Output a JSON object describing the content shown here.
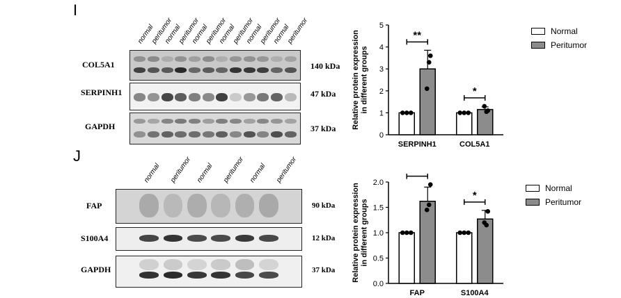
{
  "panel_i": {
    "letter": "I",
    "lane_labels": [
      "normal",
      "peritumor",
      "normal",
      "peritumor",
      "normal",
      "peritumor",
      "normal",
      "peritumor",
      "normal",
      "peritumor",
      "normal",
      "peritumor"
    ],
    "blots": [
      {
        "protein": "COL5A1",
        "size": "140 kDa"
      },
      {
        "protein": "SERPINH1",
        "size": "47 kDa"
      },
      {
        "protein": "GAPDH",
        "size": "37 kDa"
      }
    ],
    "legend": [
      {
        "label": "Normal",
        "color": "#ffffff"
      },
      {
        "label": "Peritumor",
        "color": "#8c8c8c"
      }
    ]
  },
  "panel_j": {
    "letter": "J",
    "lane_labels": [
      "normal",
      "peritumor",
      "normal",
      "peritumor",
      "normal",
      "peritumor"
    ],
    "blots": [
      {
        "protein": "FAP",
        "size": "90 kDa"
      },
      {
        "protein": "S100A4",
        "size": "12 kDa"
      },
      {
        "protein": "GAPDH",
        "size": "37 kDa"
      }
    ],
    "legend": [
      {
        "label": "Normal",
        "color": "#ffffff"
      },
      {
        "label": "Peritumor",
        "color": "#8c8c8c"
      }
    ]
  },
  "chart_data": [
    {
      "type": "bar",
      "ylabel": "Relative protein expression in different groups",
      "ylabel_lines": [
        "Relative protein expression",
        "in different groups"
      ],
      "categories": [
        "SERPINH1",
        "COL5A1"
      ],
      "ylim": [
        0,
        5
      ],
      "yticks": [
        0,
        1,
        2,
        3,
        4,
        5
      ],
      "series": [
        {
          "name": "Normal",
          "values": [
            1.0,
            1.0
          ],
          "errors": [
            0.0,
            0.0
          ],
          "points": [
            [
              1.0,
              1.0,
              1.0
            ],
            [
              1.0,
              1.0,
              1.0
            ]
          ]
        },
        {
          "name": "Peritumor",
          "values": [
            3.0,
            1.15
          ],
          "errors": [
            0.85,
            0.12
          ],
          "points": [
            [
              3.6,
              2.1,
              3.3
            ],
            [
              1.1,
              1.3,
              1.05
            ]
          ]
        }
      ],
      "significance": [
        "**",
        "*"
      ],
      "grid": false
    },
    {
      "type": "bar",
      "ylabel": "Relative protein expression in different groups",
      "ylabel_lines": [
        "Relative protein expression",
        "in different groups"
      ],
      "categories": [
        "FAP",
        "S100A4"
      ],
      "ylim": [
        0,
        2.0
      ],
      "yticks": [
        0.0,
        0.5,
        1.0,
        1.5,
        2.0
      ],
      "series": [
        {
          "name": "Normal",
          "values": [
            1.0,
            1.0
          ],
          "errors": [
            0.0,
            0.0
          ],
          "points": [
            [
              1.0,
              1.0,
              1.0
            ],
            [
              1.0,
              1.0,
              1.0
            ]
          ]
        },
        {
          "name": "Peritumor",
          "values": [
            1.62,
            1.27
          ],
          "errors": [
            0.28,
            0.17
          ],
          "points": [
            [
              1.95,
              1.45,
              1.55
            ],
            [
              1.42,
              1.2,
              1.15
            ]
          ]
        }
      ],
      "significance": [
        "*",
        "*"
      ],
      "grid": false
    }
  ]
}
